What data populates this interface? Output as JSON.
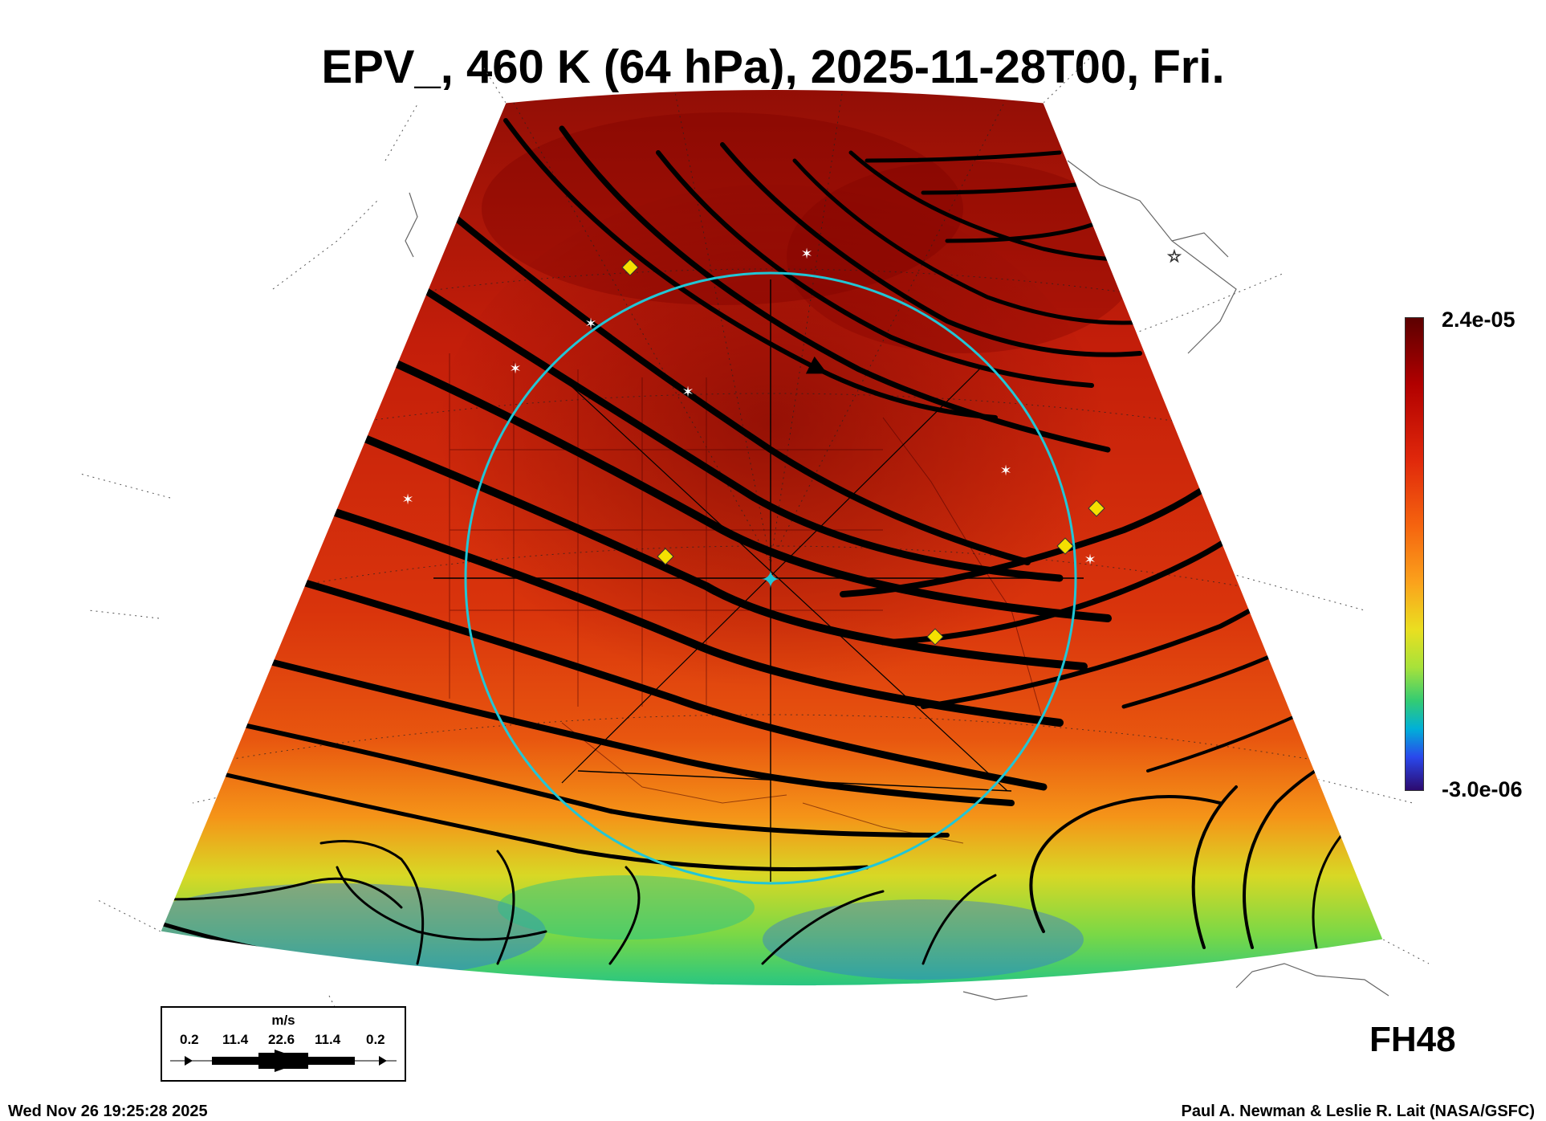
{
  "title": "EPV_, 460 K (64 hPa), 2025-11-28T00, Fri.",
  "colorbar": {
    "max_label": "2.4e-05",
    "min_label": "-3.0e-06",
    "colors": [
      "#5c0000",
      "#b10000",
      "#e0280b",
      "#f5640f",
      "#fba21c",
      "#eadf20",
      "#a7e23a",
      "#34cc72",
      "#00b0d8",
      "#2a48ec",
      "#2c0a6e"
    ]
  },
  "forecast_hour": "FH48",
  "legend": {
    "unit": "m/s",
    "values": [
      "0.2",
      "11.4",
      "22.6",
      "11.4",
      "0.2"
    ]
  },
  "footer": {
    "timestamp": "Wed Nov 26 19:25:28 2025",
    "credit": "Paul A. Newman & Leslie R. Lait (NASA/GSFC)"
  },
  "markers": {
    "ring_color": "#22c6d6",
    "diamond_color": "#f5e000",
    "star_color": "#ffffff"
  }
}
